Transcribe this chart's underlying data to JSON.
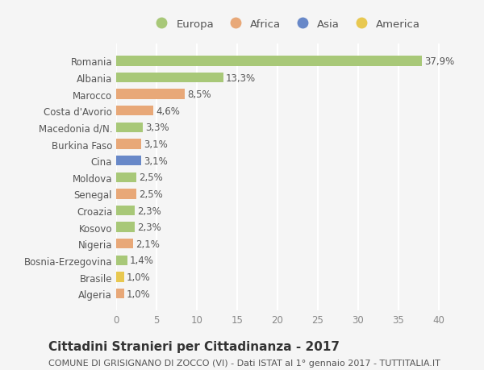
{
  "countries": [
    "Romania",
    "Albania",
    "Marocco",
    "Costa d'Avorio",
    "Macedonia d/N.",
    "Burkina Faso",
    "Cina",
    "Moldova",
    "Senegal",
    "Croazia",
    "Kosovo",
    "Nigeria",
    "Bosnia-Erzegovina",
    "Brasile",
    "Algeria"
  ],
  "values": [
    37.9,
    13.3,
    8.5,
    4.6,
    3.3,
    3.1,
    3.1,
    2.5,
    2.5,
    2.3,
    2.3,
    2.1,
    1.4,
    1.0,
    1.0
  ],
  "labels": [
    "37,9%",
    "13,3%",
    "8,5%",
    "4,6%",
    "3,3%",
    "3,1%",
    "3,1%",
    "2,5%",
    "2,5%",
    "2,3%",
    "2,3%",
    "2,1%",
    "1,4%",
    "1,0%",
    "1,0%"
  ],
  "continents": [
    "Europa",
    "Europa",
    "Africa",
    "Africa",
    "Europa",
    "Africa",
    "Asia",
    "Europa",
    "Africa",
    "Europa",
    "Europa",
    "Africa",
    "Europa",
    "America",
    "Africa"
  ],
  "colors": {
    "Europa": "#a8c878",
    "Africa": "#e8a878",
    "Asia": "#6888c8",
    "America": "#e8c850"
  },
  "legend_order": [
    "Europa",
    "Africa",
    "Asia",
    "America"
  ],
  "xlim": [
    0,
    42
  ],
  "xticks": [
    0,
    5,
    10,
    15,
    20,
    25,
    30,
    35,
    40
  ],
  "title": "Cittadini Stranieri per Cittadinanza - 2017",
  "subtitle": "COMUNE DI GRISIGNANO DI ZOCCO (VI) - Dati ISTAT al 1° gennaio 2017 - TUTTITALIA.IT",
  "bg_color": "#f5f5f5",
  "grid_color": "#ffffff",
  "bar_height": 0.6,
  "label_fontsize": 8.5,
  "tick_fontsize": 8.5,
  "title_fontsize": 11,
  "subtitle_fontsize": 8,
  "legend_fontsize": 9.5
}
